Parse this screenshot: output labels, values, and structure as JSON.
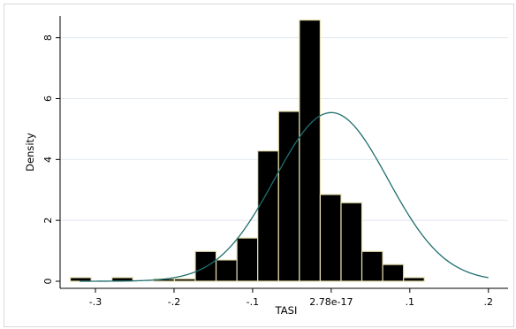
{
  "chart_data": {
    "type": "bar",
    "subtype": "histogram-with-normal-density",
    "title": "",
    "xlabel": "TASI",
    "ylabel": "Density",
    "xlim": [
      -0.345,
      0.225
    ],
    "ylim": [
      0,
      8.6
    ],
    "x_ticks": [
      {
        "value": -0.3,
        "label": "-.3"
      },
      {
        "value": -0.2,
        "label": "-.2"
      },
      {
        "value": -0.1,
        "label": "-.1"
      },
      {
        "value": 0.0,
        "label": "2.78e-17"
      },
      {
        "value": 0.1,
        "label": ".1"
      },
      {
        "value": 0.2,
        "label": ".2"
      }
    ],
    "y_ticks": [
      {
        "value": 0,
        "label": "0"
      },
      {
        "value": 2,
        "label": "2"
      },
      {
        "value": 4,
        "label": "4"
      },
      {
        "value": 6,
        "label": "6"
      },
      {
        "value": 8,
        "label": "8"
      }
    ],
    "grid": "horizontal",
    "bin_width": 0.0265,
    "bins": [
      {
        "start": -0.332,
        "density": 0.12
      },
      {
        "start": -0.3055,
        "density": 0.0
      },
      {
        "start": -0.279,
        "density": 0.12
      },
      {
        "start": -0.2525,
        "density": 0.0
      },
      {
        "start": -0.226,
        "density": 0.08
      },
      {
        "start": -0.1995,
        "density": 0.08
      },
      {
        "start": -0.173,
        "density": 0.98
      },
      {
        "start": -0.1465,
        "density": 0.7
      },
      {
        "start": -0.12,
        "density": 1.42
      },
      {
        "start": -0.0935,
        "density": 4.28
      },
      {
        "start": -0.067,
        "density": 5.58
      },
      {
        "start": -0.0405,
        "density": 8.58
      },
      {
        "start": -0.014,
        "density": 2.85
      },
      {
        "start": 0.0125,
        "density": 2.58
      },
      {
        "start": 0.039,
        "density": 0.98
      },
      {
        "start": 0.0655,
        "density": 0.55
      },
      {
        "start": 0.092,
        "density": 0.12
      }
    ],
    "density_curve": {
      "distribution": "normal",
      "mean": 0.0,
      "sd": 0.072,
      "range": [
        -0.32,
        0.2
      ]
    },
    "colors": {
      "bar_fill": "#000000",
      "bar_edge": "#e6e0b0",
      "curve": "#1f6e6e",
      "grid": "#e0e8ee",
      "axis": "#000000"
    }
  }
}
